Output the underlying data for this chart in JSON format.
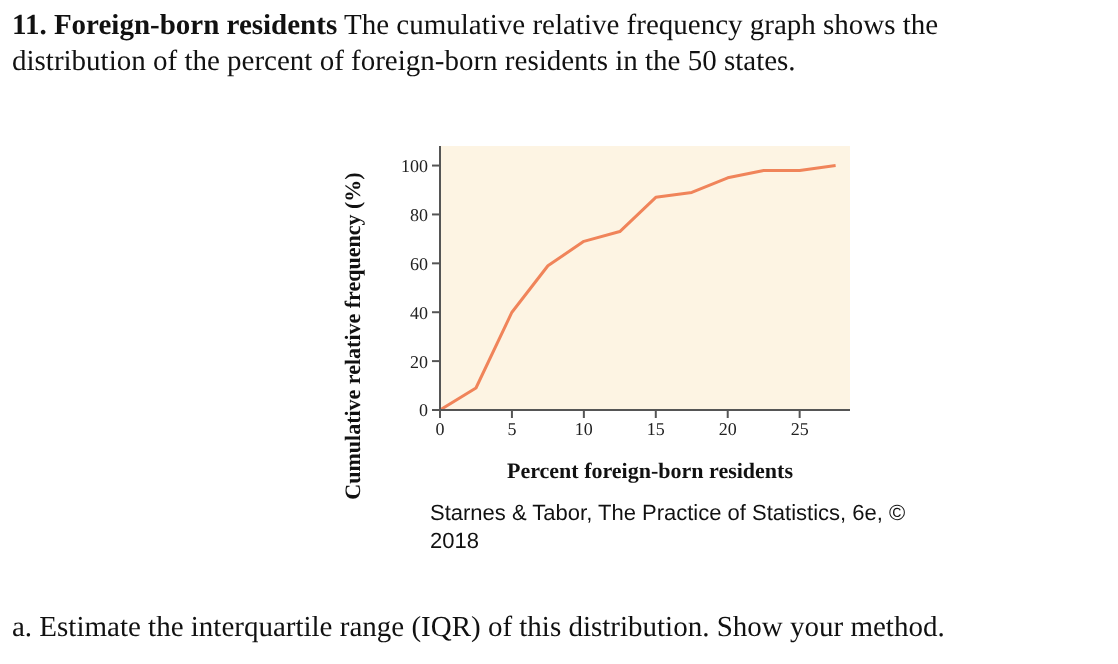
{
  "chart_data": {
    "type": "line",
    "title": "11. Foreign-born residents",
    "subtitle": "The cumulative relative frequency graph shows the distribution of the percent of foreign-born residents in the 50 states.",
    "xlabel": "Percent foreign-born residents",
    "ylabel": "Cumulative relative frequency (%)",
    "x": [
      0,
      2.5,
      5,
      7.5,
      10,
      12.5,
      15,
      17.5,
      20,
      22.5,
      25,
      27.5
    ],
    "series": [
      {
        "color": "#f0845a",
        "values": [
          0,
          9,
          40,
          59,
          69,
          73,
          87,
          89,
          95,
          98,
          98,
          100
        ]
      }
    ],
    "xlim": [
      0,
      28.5
    ],
    "xticks": [
      0,
      5,
      10,
      15,
      20,
      25
    ],
    "ylim": [
      0,
      108
    ],
    "yticks": [
      0,
      20,
      40,
      60,
      80,
      100
    ],
    "grid": false,
    "marker": "none",
    "line_style": "solid",
    "annotations": [
      "Starnes & Tabor, The Practice of Statistics, 6e, © 2018",
      "a.  Estimate the interquartile range (IQR) of this distribution. Show your method."
    ]
  }
}
